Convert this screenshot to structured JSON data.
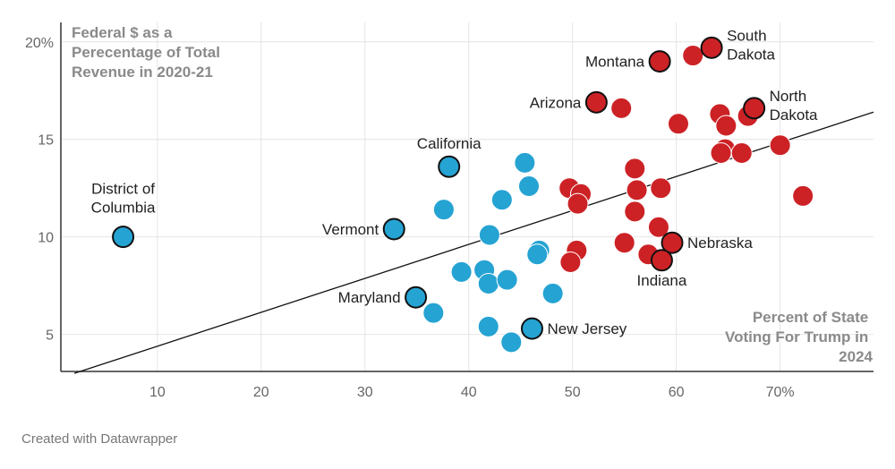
{
  "chart_data": {
    "type": "scatter",
    "ylabel_lines": [
      "Federal $ as a",
      "Perecentage of Total",
      "Revenue in 2020-21"
    ],
    "xlabel_lines": [
      "Percent of State",
      "Voting For Trump in",
      "2024"
    ],
    "x_ticks": [
      {
        "value": 10,
        "label": "10"
      },
      {
        "value": 20,
        "label": "20"
      },
      {
        "value": 30,
        "label": "30"
      },
      {
        "value": 40,
        "label": "40"
      },
      {
        "value": 50,
        "label": "50"
      },
      {
        "value": 60,
        "label": "60"
      },
      {
        "value": 70,
        "label": "70%"
      }
    ],
    "y_ticks": [
      {
        "value": 5,
        "label": "5"
      },
      {
        "value": 10,
        "label": "10"
      },
      {
        "value": 15,
        "label": "15"
      },
      {
        "value": 20,
        "label": "20%"
      }
    ],
    "xlim": [
      0.7,
      79
    ],
    "ylim": [
      3.1,
      21
    ],
    "colors": {
      "trump_majority": "#cc2226",
      "harris_majority": "#25a3d3"
    },
    "trendline": {
      "x0": 2,
      "y0": 3.0,
      "x1": 79,
      "y1": 16.4
    },
    "points": [
      {
        "x": 6.7,
        "y": 10.0,
        "label": [
          "District of",
          "Columbia"
        ],
        "group": "harris_majority"
      },
      {
        "x": 32.8,
        "y": 10.4,
        "label": [
          "Vermont"
        ],
        "group": "harris_majority"
      },
      {
        "x": 38.1,
        "y": 13.6,
        "label": [
          "California"
        ],
        "group": "harris_majority"
      },
      {
        "x": 34.9,
        "y": 6.9,
        "label": [
          "Maryland"
        ],
        "group": "harris_majority"
      },
      {
        "x": 46.1,
        "y": 5.3,
        "label": [
          "New Jersey"
        ],
        "group": "harris_majority"
      },
      {
        "x": 36.6,
        "y": 6.1,
        "group": "harris_majority"
      },
      {
        "x": 37.6,
        "y": 11.4,
        "group": "harris_majority"
      },
      {
        "x": 39.3,
        "y": 8.2,
        "group": "harris_majority"
      },
      {
        "x": 41.5,
        "y": 8.3,
        "group": "harris_majority"
      },
      {
        "x": 41.9,
        "y": 7.6,
        "group": "harris_majority"
      },
      {
        "x": 42.0,
        "y": 10.1,
        "group": "harris_majority"
      },
      {
        "x": 41.9,
        "y": 5.4,
        "group": "harris_majority"
      },
      {
        "x": 43.2,
        "y": 11.9,
        "group": "harris_majority"
      },
      {
        "x": 43.7,
        "y": 7.8,
        "group": "harris_majority"
      },
      {
        "x": 44.1,
        "y": 4.6,
        "group": "harris_majority"
      },
      {
        "x": 45.4,
        "y": 13.8,
        "group": "harris_majority"
      },
      {
        "x": 45.8,
        "y": 12.6,
        "group": "harris_majority"
      },
      {
        "x": 46.8,
        "y": 9.3,
        "group": "harris_majority"
      },
      {
        "x": 46.6,
        "y": 9.1,
        "group": "harris_majority"
      },
      {
        "x": 48.1,
        "y": 7.1,
        "group": "harris_majority"
      },
      {
        "x": 58.4,
        "y": 19.0,
        "label": [
          "Montana"
        ],
        "group": "trump_majority"
      },
      {
        "x": 63.4,
        "y": 19.7,
        "label": [
          "South",
          "Dakota"
        ],
        "group": "trump_majority"
      },
      {
        "x": 52.3,
        "y": 16.9,
        "label": [
          "Arizona"
        ],
        "group": "trump_majority"
      },
      {
        "x": 67.5,
        "y": 16.6,
        "label": [
          "North",
          "Dakota"
        ],
        "group": "trump_majority"
      },
      {
        "x": 59.6,
        "y": 9.7,
        "label": [
          "Nebraska"
        ],
        "group": "trump_majority"
      },
      {
        "x": 58.6,
        "y": 8.8,
        "label": [
          "Indiana"
        ],
        "group": "trump_majority"
      },
      {
        "x": 61.6,
        "y": 19.3,
        "group": "trump_majority"
      },
      {
        "x": 54.7,
        "y": 16.6,
        "group": "trump_majority"
      },
      {
        "x": 60.2,
        "y": 15.8,
        "group": "trump_majority"
      },
      {
        "x": 64.2,
        "y": 16.3,
        "group": "trump_majority"
      },
      {
        "x": 64.8,
        "y": 15.7,
        "group": "trump_majority"
      },
      {
        "x": 66.9,
        "y": 16.2,
        "group": "trump_majority"
      },
      {
        "x": 64.7,
        "y": 14.5,
        "group": "trump_majority"
      },
      {
        "x": 64.3,
        "y": 14.3,
        "group": "trump_majority"
      },
      {
        "x": 66.3,
        "y": 14.3,
        "group": "trump_majority"
      },
      {
        "x": 70.0,
        "y": 14.7,
        "group": "trump_majority"
      },
      {
        "x": 72.2,
        "y": 12.1,
        "group": "trump_majority"
      },
      {
        "x": 56.0,
        "y": 13.5,
        "group": "trump_majority"
      },
      {
        "x": 56.2,
        "y": 12.4,
        "group": "trump_majority"
      },
      {
        "x": 58.5,
        "y": 12.5,
        "group": "trump_majority"
      },
      {
        "x": 49.7,
        "y": 12.5,
        "group": "trump_majority"
      },
      {
        "x": 50.8,
        "y": 12.2,
        "group": "trump_majority"
      },
      {
        "x": 50.5,
        "y": 11.7,
        "group": "trump_majority"
      },
      {
        "x": 56.0,
        "y": 11.3,
        "group": "trump_majority"
      },
      {
        "x": 58.3,
        "y": 10.5,
        "group": "trump_majority"
      },
      {
        "x": 55.0,
        "y": 9.7,
        "group": "trump_majority"
      },
      {
        "x": 57.3,
        "y": 9.1,
        "group": "trump_majority"
      },
      {
        "x": 50.4,
        "y": 9.3,
        "group": "trump_majority"
      },
      {
        "x": 49.8,
        "y": 8.7,
        "group": "trump_majority"
      }
    ],
    "credit": "Created with Datawrapper"
  }
}
